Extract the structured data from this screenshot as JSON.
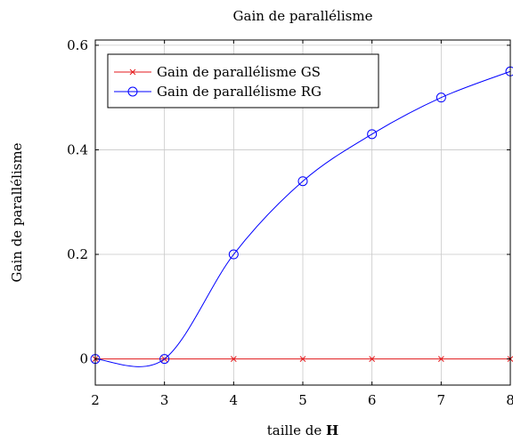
{
  "chart_data": {
    "type": "line",
    "title": "Gain de parallélisme",
    "xlabel": "taille de ",
    "xlabel_bold": "H",
    "ylabel": "Gain de parallélisme",
    "x": [
      2,
      3,
      4,
      5,
      6,
      7,
      8
    ],
    "xlim": [
      2,
      8
    ],
    "ylim": [
      -0.05,
      0.61
    ],
    "x_ticks": [
      2,
      3,
      4,
      5,
      6,
      7,
      8
    ],
    "x_tick_labels": [
      "2",
      "3",
      "4",
      "5",
      "6",
      "7",
      "8"
    ],
    "y_ticks": [
      0,
      0.2,
      0.4,
      0.6
    ],
    "y_tick_labels": [
      "0",
      "0.2",
      "0.4",
      "0.6"
    ],
    "grid": true,
    "legend_position": "top-left",
    "series": [
      {
        "name": "Gain de parallélisme GS",
        "color": "#e41a1c",
        "marker": "x",
        "values": [
          0,
          0,
          0,
          0,
          0,
          0,
          0
        ]
      },
      {
        "name": "Gain de parallélisme RG",
        "color": "#0000ff",
        "marker": "o",
        "values": [
          0,
          0,
          0.2,
          0.34,
          0.43,
          0.5,
          0.55
        ]
      }
    ]
  }
}
